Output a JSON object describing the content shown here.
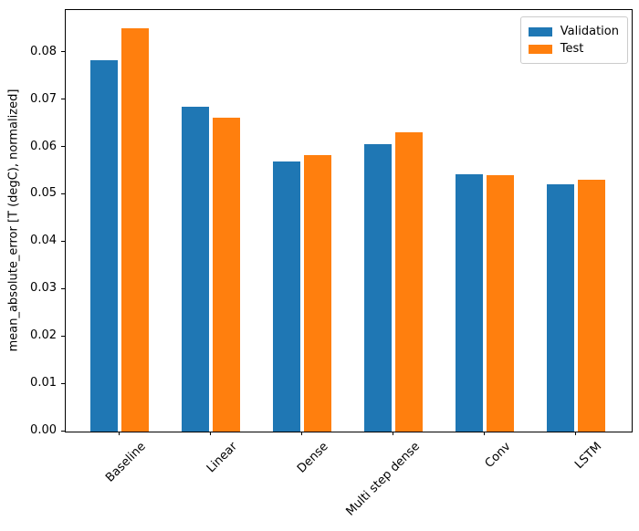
{
  "chart_data": {
    "type": "bar",
    "title": "",
    "xlabel": "",
    "ylabel": "mean_absolute_error [T (degC), normalized]",
    "categories": [
      "Baseline",
      "Linear",
      "Dense",
      "Multi step dense",
      "Conv",
      "LSTM"
    ],
    "series": [
      {
        "name": "Validation",
        "color": "#1f77b4",
        "values": [
          0.0785,
          0.0686,
          0.0571,
          0.0607,
          0.0544,
          0.0522
        ]
      },
      {
        "name": "Test",
        "color": "#ff7f0e",
        "values": [
          0.0852,
          0.0663,
          0.0583,
          0.0632,
          0.0542,
          0.0532
        ]
      }
    ],
    "ylim": [
      0,
      0.089
    ],
    "ytick_labels": [
      "0.00",
      "0.01",
      "0.02",
      "0.03",
      "0.04",
      "0.05",
      "0.06",
      "0.07",
      "0.08"
    ],
    "grid": false,
    "legend_position": "upper right",
    "xtick_rotation_deg": 45
  }
}
